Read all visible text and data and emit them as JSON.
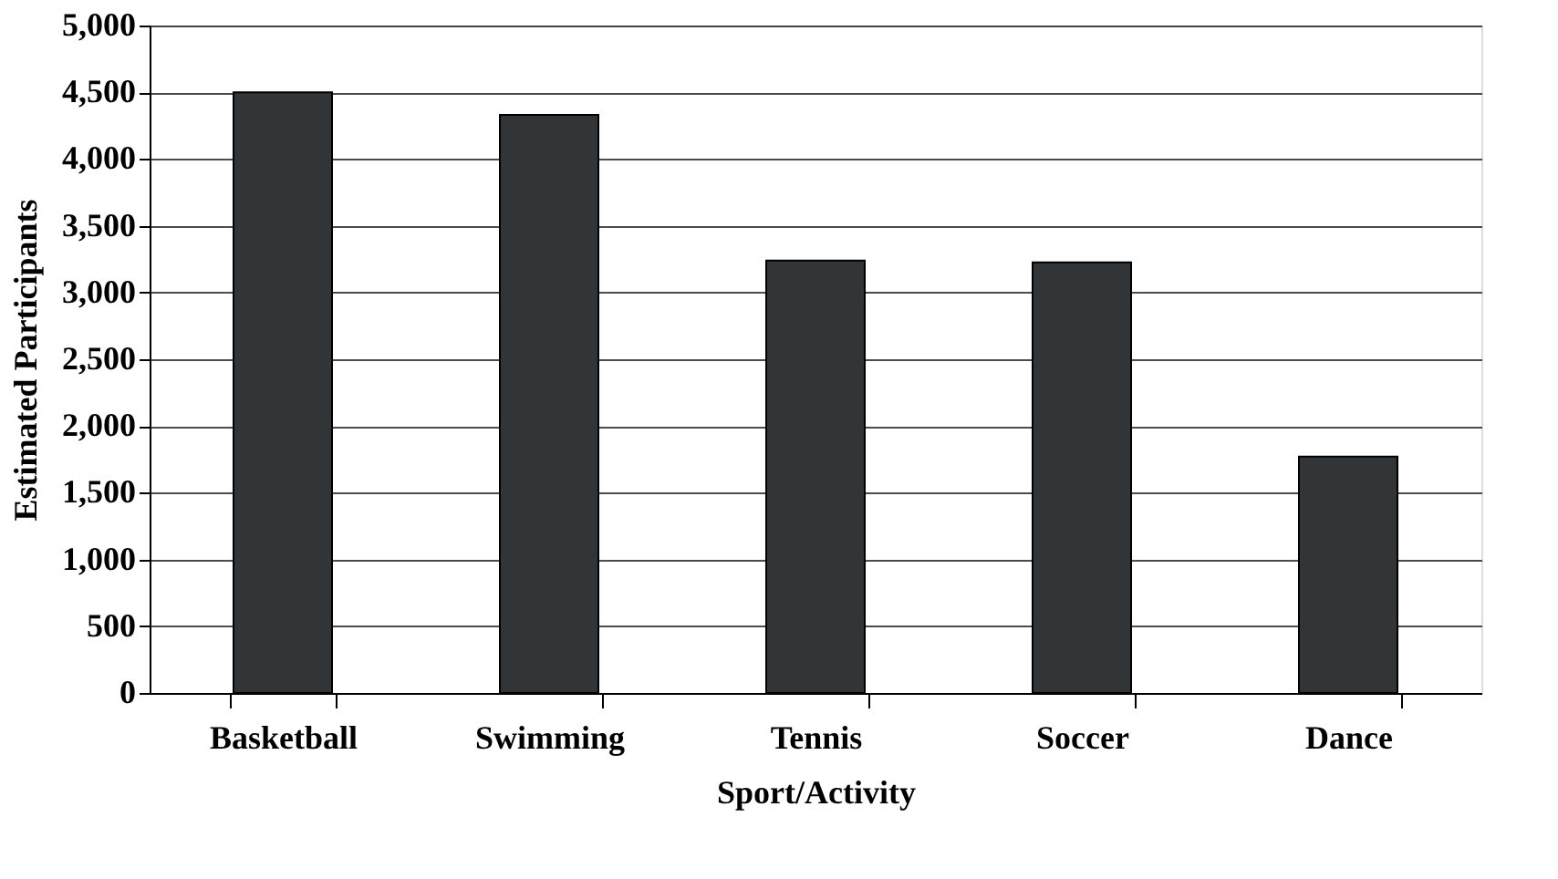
{
  "chart_data": {
    "type": "bar",
    "xlabel": "Sport/Activity",
    "ylabel": "Estimated Participants",
    "categories": [
      "Basketball",
      "Swimming",
      "Tennis",
      "Soccer",
      "Dance"
    ],
    "values": [
      4500,
      4330,
      3240,
      3225,
      1770
    ],
    "color": "#313538",
    "ylim": [
      0,
      5000
    ],
    "yticks": [
      {
        "value": 0,
        "label": "0"
      },
      {
        "value": 500,
        "label": "500"
      },
      {
        "value": 1000,
        "label": "1,000"
      },
      {
        "value": 1500,
        "label": "1,500"
      },
      {
        "value": 2000,
        "label": "2,000"
      },
      {
        "value": 2500,
        "label": "2,500"
      },
      {
        "value": 3000,
        "label": "3,000"
      },
      {
        "value": 3500,
        "label": "3,500"
      },
      {
        "value": 4000,
        "label": "4,000"
      },
      {
        "value": 4500,
        "label": "4,500"
      },
      {
        "value": 5000,
        "label": "5,000"
      }
    ],
    "grid": "y"
  }
}
